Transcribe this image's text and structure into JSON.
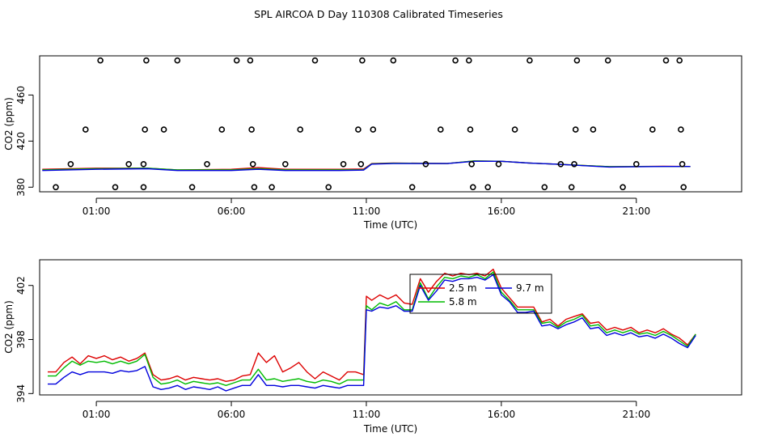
{
  "title": "SPL AIRCOA D  Day 110308  Calibrated Timeseries",
  "colors": {
    "s25": "#dd0000",
    "s58": "#00bb00",
    "s97": "#0000dd",
    "axis": "#000000"
  },
  "chart_data": [
    {
      "type": "scatter+line",
      "panel": "top",
      "xlabel": "Time (UTC)",
      "ylabel": "CO2 (ppm)",
      "xlim": [
        -1.1,
        24.9
      ],
      "ylim": [
        376,
        494
      ],
      "xticks": [
        1,
        6,
        11,
        16,
        21
      ],
      "xtick_labels": [
        "01:00",
        "06:00",
        "11:00",
        "16:00",
        "21:00"
      ],
      "yticks": [
        380,
        420,
        460
      ],
      "ytick_labels": [
        "380",
        "420",
        "460"
      ],
      "points": [
        [
          -0.5,
          380
        ],
        [
          0.05,
          400
        ],
        [
          0.6,
          430
        ],
        [
          1.15,
          490
        ],
        [
          1.7,
          380
        ],
        [
          2.2,
          400
        ],
        [
          2.75,
          380
        ],
        [
          2.75,
          400
        ],
        [
          2.8,
          430
        ],
        [
          2.85,
          490
        ],
        [
          3.5,
          430
        ],
        [
          4.0,
          490
        ],
        [
          4.55,
          380
        ],
        [
          5.1,
          400
        ],
        [
          5.65,
          430
        ],
        [
          6.2,
          490
        ],
        [
          6.7,
          490
        ],
        [
          6.75,
          430
        ],
        [
          6.8,
          400
        ],
        [
          6.85,
          380
        ],
        [
          7.5,
          380
        ],
        [
          8.0,
          400
        ],
        [
          8.55,
          430
        ],
        [
          9.1,
          490
        ],
        [
          9.6,
          380
        ],
        [
          10.15,
          400
        ],
        [
          10.7,
          430
        ],
        [
          10.8,
          400
        ],
        [
          10.85,
          490
        ],
        [
          11.25,
          430
        ],
        [
          12.0,
          490
        ],
        [
          12.7,
          380
        ],
        [
          13.2,
          400
        ],
        [
          13.75,
          430
        ],
        [
          14.3,
          490
        ],
        [
          14.8,
          490
        ],
        [
          14.85,
          430
        ],
        [
          14.9,
          400
        ],
        [
          14.95,
          380
        ],
        [
          15.5,
          380
        ],
        [
          15.9,
          400
        ],
        [
          16.5,
          430
        ],
        [
          17.05,
          490
        ],
        [
          17.6,
          380
        ],
        [
          18.2,
          400
        ],
        [
          18.6,
          380
        ],
        [
          18.7,
          400
        ],
        [
          18.75,
          430
        ],
        [
          18.8,
          490
        ],
        [
          19.4,
          430
        ],
        [
          19.95,
          490
        ],
        [
          20.5,
          380
        ],
        [
          21.0,
          400
        ],
        [
          21.6,
          430
        ],
        [
          22.1,
          490
        ],
        [
          22.6,
          490
        ],
        [
          22.65,
          430
        ],
        [
          22.7,
          400
        ],
        [
          22.75,
          380
        ]
      ],
      "series": [
        {
          "name": "2.5 m",
          "color": "#dd0000",
          "x": [
            -1,
            1,
            2.9,
            4,
            6,
            7,
            8,
            10,
            10.9,
            11.2,
            12,
            14,
            15,
            16,
            17,
            18,
            20,
            22,
            23
          ],
          "values": [
            395.5,
            396.5,
            396.5,
            395,
            395.5,
            397,
            395.5,
            395.5,
            395.8,
            400.5,
            401,
            400.5,
            402.8,
            402.5,
            401,
            400,
            397.8,
            398.2,
            398
          ]
        },
        {
          "name": "5.8 m",
          "color": "#00bb00",
          "x": [
            -1,
            1,
            2.9,
            4,
            6,
            7,
            8,
            10,
            10.9,
            11.2,
            12,
            14,
            15,
            16,
            17,
            18,
            20,
            22,
            23
          ],
          "values": [
            395,
            396,
            396.5,
            395,
            395,
            396,
            395,
            395,
            395.2,
            400.2,
            400.8,
            400.5,
            402.8,
            402.5,
            401,
            400,
            397.8,
            398,
            398
          ]
        },
        {
          "name": "9.7 m",
          "color": "#0000dd",
          "x": [
            -1,
            1,
            2.9,
            4,
            6,
            7,
            8,
            10,
            10.9,
            11.2,
            12,
            14,
            15,
            16,
            17,
            18,
            20,
            22,
            23
          ],
          "values": [
            394.5,
            395.5,
            396,
            394.5,
            394.5,
            395.5,
            394.5,
            394.5,
            394.8,
            400,
            400.5,
            400.5,
            402.5,
            402.5,
            401,
            400,
            397.5,
            398,
            398
          ]
        }
      ]
    },
    {
      "type": "line",
      "panel": "bottom",
      "xlabel": "Time (UTC)",
      "ylabel": "CO2 (ppm)",
      "xlim": [
        -1.1,
        24.9
      ],
      "ylim": [
        393.9,
        403.9
      ],
      "xticks": [
        1,
        6,
        11,
        16,
        21
      ],
      "xtick_labels": [
        "01:00",
        "06:00",
        "11:00",
        "16:00",
        "21:00"
      ],
      "yticks": [
        394,
        398,
        402
      ],
      "ytick_labels": [
        "394",
        "398",
        "402"
      ],
      "legend": {
        "placement": "top-center",
        "entries": [
          "2.5 m",
          "9.7 m",
          "5.8 m"
        ]
      },
      "x": [
        -0.8,
        -0.5,
        -0.2,
        0.1,
        0.4,
        0.7,
        1.0,
        1.3,
        1.6,
        1.9,
        2.2,
        2.5,
        2.8,
        3.1,
        3.4,
        3.7,
        4.0,
        4.3,
        4.6,
        4.9,
        5.2,
        5.5,
        5.8,
        6.1,
        6.4,
        6.7,
        7.0,
        7.3,
        7.6,
        7.9,
        8.2,
        8.5,
        8.8,
        9.1,
        9.4,
        9.7,
        10.0,
        10.3,
        10.6,
        10.9,
        11.0,
        11.2,
        11.5,
        11.8,
        12.1,
        12.4,
        12.7,
        13.0,
        13.3,
        13.6,
        13.9,
        14.2,
        14.5,
        14.8,
        15.1,
        15.4,
        15.7,
        16.0,
        16.3,
        16.6,
        16.9,
        17.2,
        17.5,
        17.8,
        18.1,
        18.4,
        18.7,
        19.0,
        19.3,
        19.6,
        19.9,
        20.2,
        20.5,
        20.8,
        21.1,
        21.4,
        21.7,
        22.0,
        22.3,
        22.6,
        22.9,
        23.2
      ],
      "series": [
        {
          "name": "2.5 m",
          "color": "#dd0000",
          "values": [
            395.6,
            395.6,
            396.3,
            396.7,
            396.2,
            396.8,
            396.6,
            396.8,
            396.5,
            396.7,
            396.4,
            396.6,
            397.0,
            395.4,
            395.0,
            395.1,
            395.3,
            395.0,
            395.2,
            395.1,
            395.0,
            395.1,
            394.9,
            395.0,
            395.3,
            395.4,
            397.0,
            396.3,
            396.8,
            395.6,
            395.9,
            396.3,
            395.6,
            395.1,
            395.6,
            395.3,
            395.0,
            395.6,
            395.6,
            395.4,
            401.2,
            400.9,
            401.3,
            401.0,
            401.3,
            400.7,
            400.6,
            402.5,
            401.5,
            402.3,
            402.9,
            402.7,
            402.9,
            402.8,
            402.9,
            402.7,
            403.2,
            401.8,
            401.1,
            400.4,
            400.4,
            400.4,
            399.3,
            399.5,
            399.0,
            399.5,
            399.7,
            399.9,
            399.2,
            399.3,
            398.7,
            398.9,
            398.7,
            398.9,
            398.5,
            398.7,
            398.5,
            398.8,
            398.4,
            398.1,
            397.6,
            398.4
          ]
        },
        {
          "name": "5.8 m",
          "color": "#00bb00",
          "values": [
            395.3,
            395.3,
            395.9,
            396.4,
            396.1,
            396.4,
            396.3,
            396.4,
            396.2,
            396.4,
            396.2,
            396.4,
            396.9,
            395.2,
            394.7,
            394.8,
            395.0,
            394.7,
            394.9,
            394.8,
            394.7,
            394.8,
            394.6,
            394.8,
            395.0,
            395.0,
            395.8,
            395.0,
            395.1,
            394.9,
            395.0,
            395.1,
            394.9,
            394.8,
            395.0,
            394.9,
            394.7,
            395.0,
            395.0,
            395.0,
            400.5,
            400.2,
            400.7,
            400.5,
            400.8,
            400.2,
            400.2,
            402.2,
            401.0,
            401.9,
            402.6,
            402.5,
            402.7,
            402.6,
            402.8,
            402.5,
            403.0,
            401.5,
            400.9,
            400.2,
            400.2,
            400.2,
            399.2,
            399.3,
            398.9,
            399.3,
            399.5,
            399.8,
            399.0,
            399.1,
            398.5,
            398.7,
            398.5,
            398.7,
            398.4,
            398.5,
            398.3,
            398.6,
            398.3,
            397.9,
            397.5,
            398.4
          ]
        },
        {
          "name": "9.7 m",
          "color": "#0000dd",
          "values": [
            394.7,
            394.7,
            395.2,
            395.6,
            395.4,
            395.6,
            395.6,
            395.6,
            395.5,
            395.7,
            395.6,
            395.7,
            396.0,
            394.5,
            394.3,
            394.4,
            394.6,
            394.3,
            394.5,
            394.4,
            394.3,
            394.5,
            394.2,
            394.4,
            394.6,
            394.6,
            395.4,
            394.6,
            394.6,
            394.5,
            394.6,
            394.6,
            394.5,
            394.4,
            394.6,
            394.5,
            394.4,
            394.6,
            394.6,
            394.6,
            400.2,
            400.1,
            400.4,
            400.3,
            400.5,
            400.1,
            400.1,
            402.0,
            400.9,
            401.6,
            402.4,
            402.3,
            402.5,
            402.5,
            402.6,
            402.4,
            402.8,
            401.3,
            400.8,
            400.0,
            400.0,
            400.1,
            399.0,
            399.1,
            398.8,
            399.1,
            399.3,
            399.6,
            398.8,
            398.9,
            398.3,
            398.5,
            398.3,
            398.5,
            398.2,
            398.3,
            398.1,
            398.4,
            398.1,
            397.7,
            397.4,
            398.3
          ]
        }
      ]
    }
  ]
}
